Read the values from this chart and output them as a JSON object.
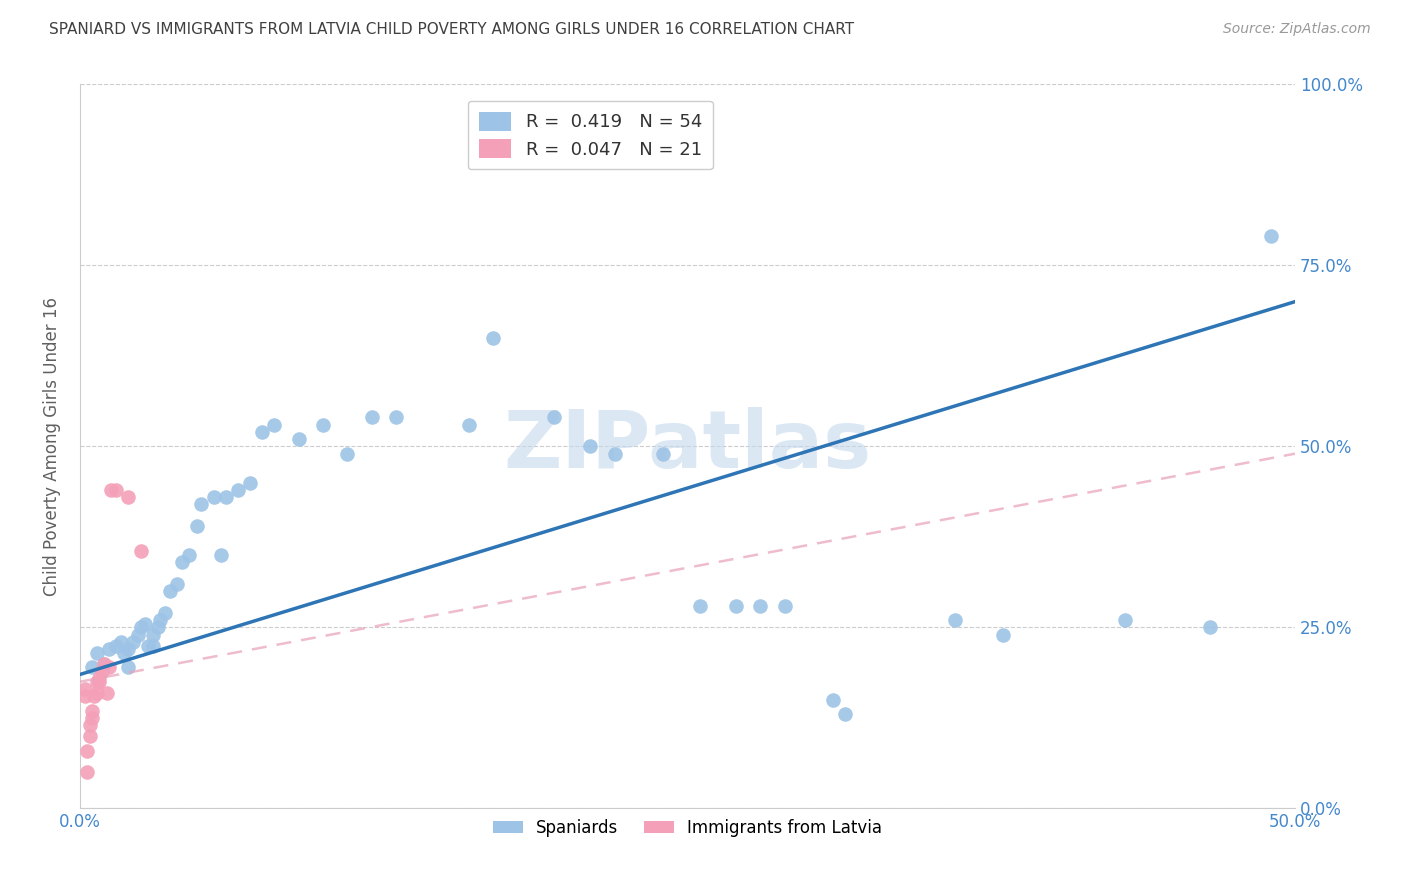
{
  "title": "SPANIARD VS IMMIGRANTS FROM LATVIA CHILD POVERTY AMONG GIRLS UNDER 16 CORRELATION CHART",
  "source": "Source: ZipAtlas.com",
  "ylabel": "Child Poverty Among Girls Under 16",
  "xlim": [
    0.0,
    0.5
  ],
  "ylim": [
    0.0,
    1.0
  ],
  "xtick_labels": [
    "0.0%",
    "",
    "",
    "",
    "",
    "50.0%"
  ],
  "xtick_vals": [
    0.0,
    0.1,
    0.2,
    0.3,
    0.4,
    0.5
  ],
  "ytick_labels": [
    "0.0%",
    "25.0%",
    "50.0%",
    "75.0%",
    "100.0%"
  ],
  "ytick_vals": [
    0.0,
    0.25,
    0.5,
    0.75,
    1.0
  ],
  "legend_labels": [
    "Spaniards",
    "Immigrants from Latvia"
  ],
  "r_spaniards": 0.419,
  "n_spaniards": 54,
  "r_latvia": 0.047,
  "n_latvia": 21,
  "spaniards_color": "#9dc3e6",
  "latvia_color": "#f4a0b8",
  "spaniards_line_color": "#2e75b6",
  "latvia_line_color": "#e8a0b8",
  "grid_color": "#cccccc",
  "title_color": "#404040",
  "axis_label_color": "#606060",
  "tick_label_color": "#4488cc",
  "watermark": "ZIPatlas",
  "watermark_color": "#c5d8ee",
  "spaniards_x": [
    0.005,
    0.007,
    0.01,
    0.012,
    0.015,
    0.017,
    0.018,
    0.02,
    0.02,
    0.022,
    0.024,
    0.025,
    0.027,
    0.028,
    0.03,
    0.03,
    0.032,
    0.033,
    0.035,
    0.037,
    0.04,
    0.042,
    0.045,
    0.048,
    0.05,
    0.055,
    0.058,
    0.06,
    0.065,
    0.07,
    0.075,
    0.08,
    0.09,
    0.1,
    0.11,
    0.12,
    0.13,
    0.16,
    0.17,
    0.195,
    0.21,
    0.22,
    0.24,
    0.255,
    0.27,
    0.28,
    0.29,
    0.31,
    0.315,
    0.36,
    0.38,
    0.43,
    0.465,
    0.49
  ],
  "spaniards_y": [
    0.195,
    0.215,
    0.2,
    0.22,
    0.225,
    0.23,
    0.215,
    0.195,
    0.22,
    0.23,
    0.24,
    0.25,
    0.255,
    0.225,
    0.225,
    0.24,
    0.25,
    0.26,
    0.27,
    0.3,
    0.31,
    0.34,
    0.35,
    0.39,
    0.42,
    0.43,
    0.35,
    0.43,
    0.44,
    0.45,
    0.52,
    0.53,
    0.51,
    0.53,
    0.49,
    0.54,
    0.54,
    0.53,
    0.65,
    0.54,
    0.5,
    0.49,
    0.49,
    0.28,
    0.28,
    0.28,
    0.28,
    0.15,
    0.13,
    0.26,
    0.24,
    0.26,
    0.25,
    0.79
  ],
  "latvia_x": [
    0.002,
    0.002,
    0.003,
    0.003,
    0.004,
    0.004,
    0.005,
    0.005,
    0.006,
    0.007,
    0.007,
    0.008,
    0.008,
    0.009,
    0.01,
    0.011,
    0.012,
    0.013,
    0.015,
    0.02,
    0.025
  ],
  "latvia_y": [
    0.155,
    0.165,
    0.05,
    0.08,
    0.1,
    0.115,
    0.125,
    0.135,
    0.155,
    0.16,
    0.175,
    0.175,
    0.18,
    0.19,
    0.2,
    0.16,
    0.195,
    0.44,
    0.44,
    0.43,
    0.355
  ],
  "spaniards_line_x": [
    0.0,
    0.5
  ],
  "spaniards_line_y": [
    0.185,
    0.7
  ],
  "latvia_line_x": [
    0.0,
    0.5
  ],
  "latvia_line_y": [
    0.175,
    0.49
  ]
}
